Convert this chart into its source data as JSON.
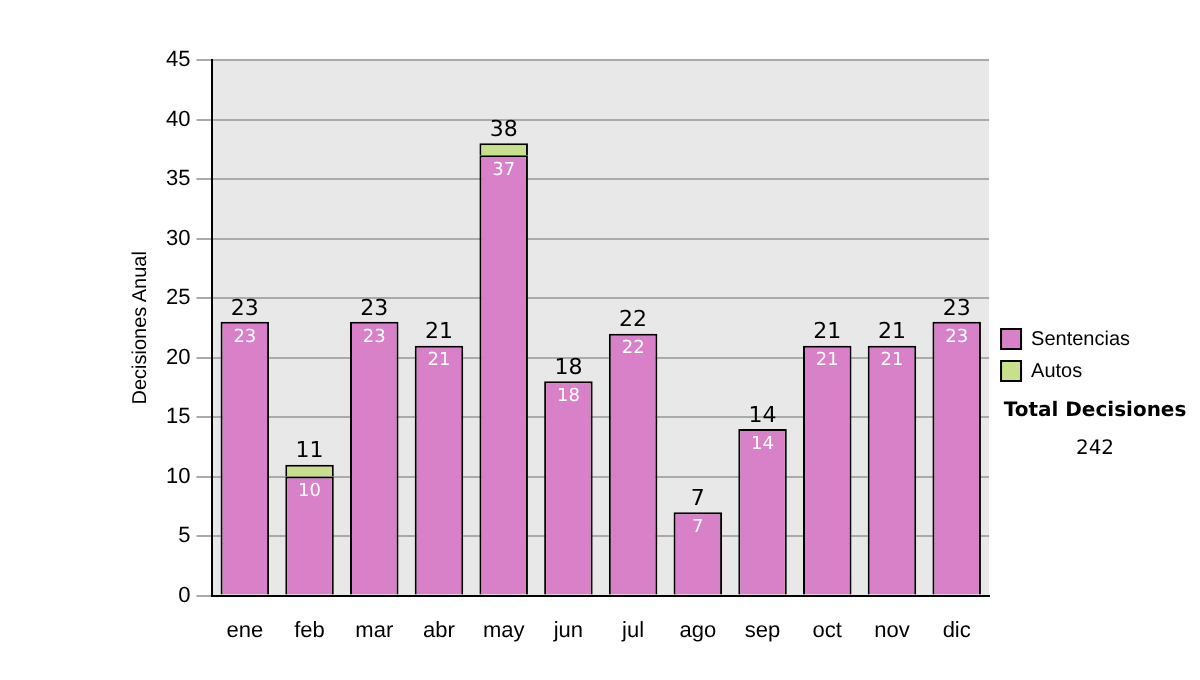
{
  "chart_data": {
    "type": "bar",
    "stacked": true,
    "ylabel": "Decisiones Anual",
    "categories": [
      "ene",
      "feb",
      "mar",
      "abr",
      "may",
      "jun",
      "jul",
      "ago",
      "sep",
      "oct",
      "nov",
      "dic"
    ],
    "series": [
      {
        "name": "Sentencias",
        "color": "#d880c8",
        "values": [
          23,
          10,
          23,
          21,
          37,
          18,
          22,
          7,
          14,
          21,
          21,
          23
        ],
        "value_labels": [
          "23",
          "10",
          "23",
          "21",
          "37",
          "18",
          "22",
          "7",
          "14",
          "21",
          "21",
          "23"
        ]
      },
      {
        "name": "Autos",
        "color": "#c8e08c",
        "values": [
          0,
          1,
          0,
          0,
          1,
          0,
          0,
          0,
          0,
          0,
          0,
          0
        ]
      }
    ],
    "totals": [
      "23",
      "11",
      "23",
      "21",
      "38",
      "18",
      "22",
      "7",
      "14",
      "21",
      "21",
      "23"
    ],
    "ylim": [
      0,
      45
    ],
    "yticks": [
      0,
      5,
      10,
      15,
      20,
      25,
      30,
      35,
      40,
      45
    ],
    "grid": "y",
    "legend": "right",
    "annotations": [
      "Total Decisiones",
      "242"
    ]
  }
}
